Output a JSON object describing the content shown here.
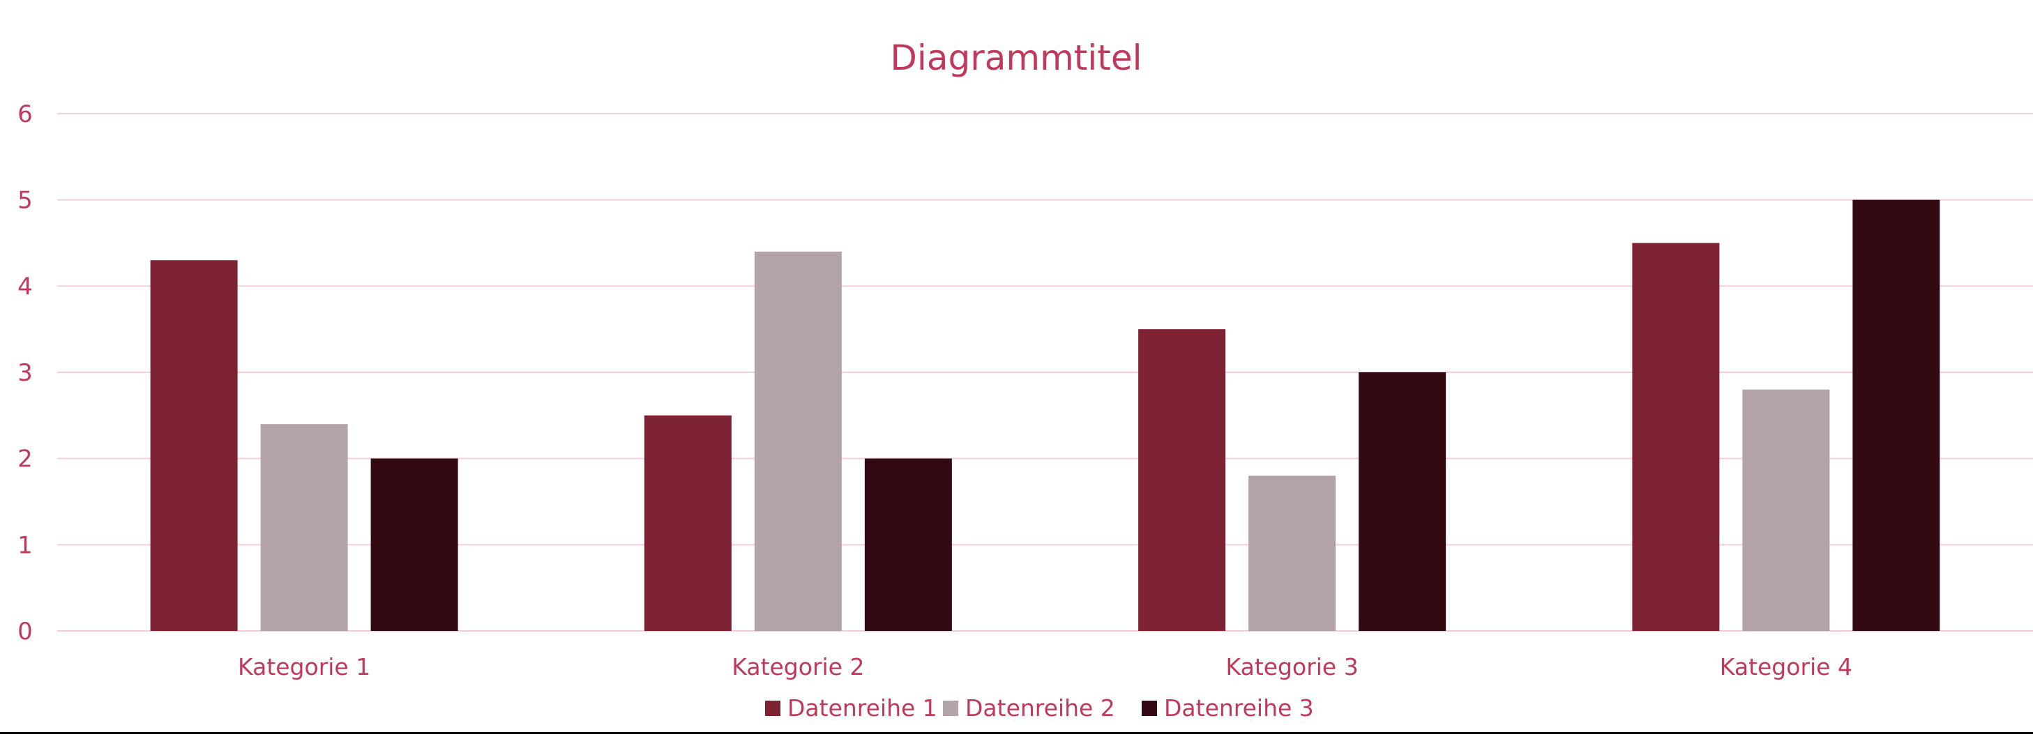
{
  "chart_data": {
    "type": "bar",
    "title": "Diagrammtitel",
    "categories": [
      "Kategorie 1",
      "Kategorie 2",
      "Kategorie 3",
      "Kategorie 4"
    ],
    "series": [
      {
        "name": "Datenreihe 1",
        "values": [
          4.3,
          2.5,
          3.5,
          4.5
        ],
        "color": "#7d2333"
      },
      {
        "name": "Datenreihe 2",
        "values": [
          2.4,
          4.4,
          1.8,
          2.8
        ],
        "color": "#b3a2a6"
      },
      {
        "name": "Datenreihe 3",
        "values": [
          2,
          2,
          3,
          5
        ],
        "color": "#330a12"
      }
    ],
    "xlabel": "",
    "ylabel": "",
    "ylim": [
      0,
      6
    ],
    "yticks": [
      "0",
      "1",
      "2",
      "3",
      "4",
      "5",
      "6"
    ],
    "grid": true,
    "legend": "bottom",
    "colors": {
      "text": "#c0395a",
      "grid": "#f3cdd7"
    }
  }
}
